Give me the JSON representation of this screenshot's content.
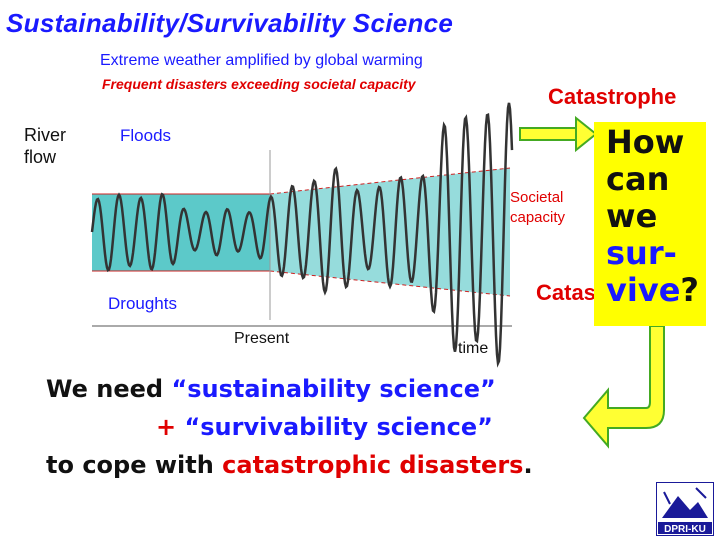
{
  "title": "Sustainability/Survivability Science",
  "subtitle_1": "Extreme weather amplified by global warming",
  "subtitle_2": "Frequent disasters exceeding societal capacity",
  "catastrophe_top": "Catastrophe",
  "catastrophe_bottom": "Catastrophe",
  "y_label": "River flow",
  "floods_label": "Floods",
  "droughts_label": "Droughts",
  "present_label": "Present",
  "time_label": "time",
  "societal_capacity_label": "Societal capacity",
  "question": {
    "line1": "How",
    "line2": "can",
    "line3": "we",
    "line4": "sur-",
    "line5_word": "vive",
    "line5_punct": "?"
  },
  "message": {
    "line1_pre": "We need ",
    "line1_em": "“sustainability science”",
    "line2_pre": "+ ",
    "line2_em": "“survivability science”",
    "line3_pre": "to cope with ",
    "line3_em": "catastrophic disasters",
    "line3_post": "."
  },
  "logo_text": "DPRI-KU",
  "colors": {
    "blue": "#1a1aff",
    "red": "#e00000",
    "capacity_fill": "#40c0c0",
    "highlight": "#ffff00",
    "arrow_green": "#44aa22"
  }
}
